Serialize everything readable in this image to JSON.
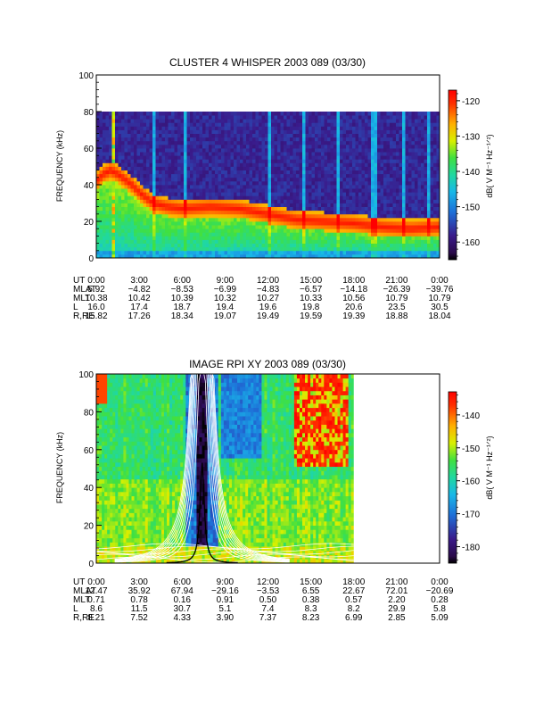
{
  "chart_data": [
    {
      "type": "heatmap",
      "title": "CLUSTER 4 WHISPER 2003 089 (03/30)",
      "ylabel": "FREQUENCY (kHz)",
      "ylim": [
        0,
        100
      ],
      "yticks": [
        "0",
        "20",
        "40",
        "60",
        "80",
        "100"
      ],
      "data_freq_max": 80,
      "colorbar": {
        "label": "dB( V M⁻¹ Hz⁻¹ᐟ²)",
        "range": [
          -165,
          -117
        ],
        "ticks": [
          "-120",
          "-130",
          "-140",
          "-150",
          "-160"
        ],
        "tick_values": [
          -120,
          -130,
          -140,
          -150,
          -160
        ]
      },
      "colors": {
        "background": "#3a0f78",
        "low": "#1e6fd8",
        "high": "#ff3000"
      },
      "bands": [
        {
          "t": [
            0.0,
            0.5,
            1.0,
            1.5,
            2.0,
            2.5,
            3.0,
            4.0,
            5.0,
            6.0,
            8.0,
            10.0,
            12.0,
            14.0,
            16.0,
            18.0,
            20.0,
            22.0,
            24.0
          ],
          "f": [
            42,
            46,
            48,
            46,
            43,
            40,
            36,
            30,
            28,
            27,
            28,
            27,
            24,
            21,
            20,
            19,
            17,
            16,
            17
          ]
        }
      ],
      "ephemeris": {
        "labels": [
          "UT",
          "MLAT",
          "MLT",
          "L",
          "R,RE"
        ],
        "UT": [
          "0:00",
          "3:00",
          "6:00",
          "9:00",
          "12:00",
          "15:00",
          "18:00",
          "21:00",
          "0:00"
        ],
        "MLAT": [
          "5.92",
          "−4.82",
          "−8.53",
          "−6.99",
          "−4.83",
          "−6.57",
          "−14.18",
          "−26.39",
          "−39.76"
        ],
        "MLT": [
          "10.38",
          "10.42",
          "10.39",
          "10.32",
          "10.27",
          "10.33",
          "10.56",
          "10.79",
          "10.79"
        ],
        "L": [
          "16.0",
          "17.4",
          "18.7",
          "19.4",
          "19.6",
          "19.8",
          "20.6",
          "23.5",
          "30.5"
        ],
        "RRE": [
          "15.82",
          "17.26",
          "18.34",
          "19.07",
          "19.49",
          "19.59",
          "19.39",
          "18.88",
          "18.04"
        ]
      }
    },
    {
      "type": "heatmap",
      "title": "IMAGE RPI XY 2003 089 (03/30)",
      "ylabel": "FREQUENCY (kHz)",
      "ylim": [
        0,
        100
      ],
      "yticks": [
        "0",
        "20",
        "40",
        "60",
        "80",
        "100"
      ],
      "data_time_max": 18.0,
      "colorbar": {
        "label": "dB( V M⁻¹ Hz⁻¹ᐟ²)",
        "range": [
          -185,
          -133
        ],
        "ticks": [
          "-140",
          "-150",
          "-160",
          "-170",
          "-180"
        ],
        "tick_values": [
          -140,
          -150,
          -160,
          -170,
          -180
        ]
      },
      "colors": {
        "background": "#ffffff",
        "curves": "#ffffff",
        "plasma_line": "#000000"
      },
      "ephemeris": {
        "labels": [
          "UT",
          "MLAT",
          "MLT",
          "L",
          "R,RE"
        ],
        "UT": [
          "0:00",
          "3:00",
          "6:00",
          "9:00",
          "12:00",
          "15:00",
          "18:00",
          "21:00",
          "0:00"
        ],
        "MLAT": [
          "12.47",
          "35.92",
          "67.94",
          "−29.16",
          "−3.53",
          "6.55",
          "22.67",
          "72.01",
          "−20.69"
        ],
        "MLT": [
          "0.71",
          "0.78",
          "0.16",
          "0.91",
          "0.50",
          "0.38",
          "0.57",
          "2.20",
          "0.28"
        ],
        "L": [
          "8.6",
          "11.5",
          "30.7",
          "5.1",
          "7.4",
          "8.3",
          "8.2",
          "29.9",
          "5.8"
        ],
        "RRE": [
          "8.21",
          "7.52",
          "4.33",
          "3.90",
          "7.37",
          "8.23",
          "6.99",
          "2.85",
          "5.09"
        ]
      }
    }
  ]
}
